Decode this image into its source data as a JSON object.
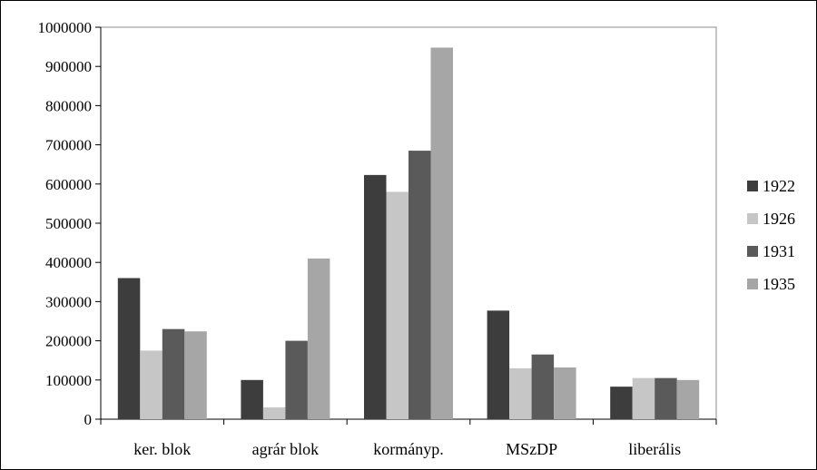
{
  "chart_data": {
    "type": "bar",
    "title": "",
    "xlabel": "",
    "ylabel": "",
    "categories": [
      "ker. blok",
      "agrár blok",
      "kormányp.",
      "MSzDP",
      "liberális"
    ],
    "series": [
      {
        "name": "1922",
        "color": "#3d3d3d",
        "values": [
          360000,
          100000,
          623000,
          277000,
          83000
        ]
      },
      {
        "name": "1926",
        "color": "#c6c6c6",
        "values": [
          175000,
          30000,
          580000,
          130000,
          105000
        ]
      },
      {
        "name": "1931",
        "color": "#5a5a5a",
        "values": [
          230000,
          200000,
          685000,
          165000,
          105000
        ]
      },
      {
        "name": "1935",
        "color": "#a6a6a6",
        "values": [
          224000,
          410000,
          948000,
          132000,
          100000
        ]
      }
    ],
    "ylim": [
      0,
      1000000
    ],
    "yticks": [
      0,
      100000,
      200000,
      300000,
      400000,
      500000,
      600000,
      700000,
      800000,
      900000,
      1000000
    ],
    "grid": false,
    "legend": "right"
  }
}
